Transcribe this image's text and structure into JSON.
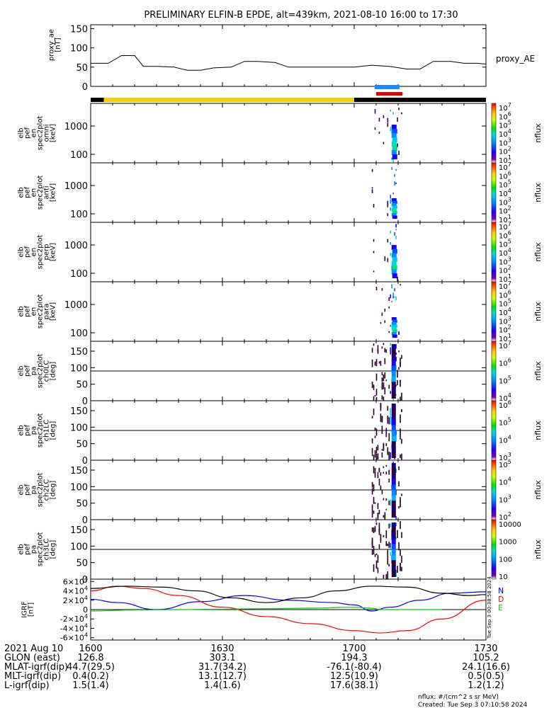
{
  "title": "PRELIMINARY ELFIN-B EPDE, alt=439km, 2021-08-10 16:00 to 17:30",
  "colors": {
    "science_bar_yellow": "#f5d000",
    "black": "#000000",
    "blue_bar": "#1a8cff",
    "red_bar": "#e00000",
    "grf_n": "#0000ff",
    "grf_d": "#ff0000",
    "grf_e": "#00cc00"
  },
  "chart_data": [
    {
      "type": "line",
      "name": "proxy_ae",
      "ylabel": [
        "proxy_ae",
        "[nT]"
      ],
      "legend": "proxy_AE",
      "ylim": [
        0,
        160
      ],
      "yticks": [
        "150",
        "100",
        "50",
        "0"
      ],
      "ytick_values": [
        150,
        100,
        50,
        0
      ],
      "x": [
        "16:00",
        "16:04",
        "16:07",
        "16:10",
        "16:12",
        "16:15",
        "16:19",
        "16:22",
        "16:25",
        "16:28",
        "16:32",
        "16:35",
        "16:38",
        "16:42",
        "16:45",
        "16:48",
        "16:52",
        "16:56",
        "17:00",
        "17:04",
        "17:08",
        "17:12",
        "17:15",
        "17:18",
        "17:22",
        "17:25",
        "17:28",
        "17:30"
      ],
      "values": [
        60,
        60,
        80,
        80,
        52,
        52,
        50,
        42,
        42,
        48,
        50,
        65,
        65,
        62,
        50,
        50,
        50,
        50,
        50,
        55,
        52,
        45,
        45,
        65,
        65,
        60,
        60,
        58
      ]
    },
    {
      "type": "bar",
      "name": "status-bars",
      "segments": [
        {
          "color": "black",
          "start": "16:00",
          "end": "16:03"
        },
        {
          "color": "yellow",
          "start": "16:03",
          "end": "17:00"
        },
        {
          "color": "black",
          "start": "17:00",
          "end": "17:30"
        }
      ],
      "blue_marks": [
        {
          "start": "17:05",
          "end": "17:10"
        }
      ],
      "red_marks": [
        {
          "start": "17:05",
          "end": "17:10"
        },
        {
          "start": "17:10",
          "end": "17:11"
        }
      ]
    },
    {
      "type": "heatmap",
      "name": "energy-spectrogram-omni",
      "ylabel": [
        "elb",
        "pef",
        "en",
        "spec2plot",
        "omni",
        "[keV]"
      ],
      "yticks": [
        "1000",
        "100"
      ],
      "colorbar": {
        "label": "nflux",
        "ticks": [
          "10^7",
          "10^6",
          "10^5",
          "10^4",
          "10^3",
          "10^2",
          "10^1"
        ]
      }
    },
    {
      "type": "heatmap",
      "name": "energy-spectrogram-anti",
      "ylabel": [
        "elb",
        "pef",
        "en",
        "spec2plot",
        "anti",
        "[keV]"
      ],
      "yticks": [
        "1000",
        "100"
      ],
      "colorbar": {
        "label": "nflux",
        "ticks": [
          "10^7",
          "10^6",
          "10^5",
          "10^4",
          "10^3",
          "10^2",
          "10^1"
        ]
      }
    },
    {
      "type": "heatmap",
      "name": "energy-spectrogram-perp",
      "ylabel": [
        "elb",
        "pef",
        "en",
        "spec2plot",
        "perp",
        "[keV]"
      ],
      "yticks": [
        "1000",
        "100"
      ],
      "colorbar": {
        "label": "nflux",
        "ticks": [
          "10^7",
          "10^6",
          "10^5",
          "10^4",
          "10^3",
          "10^2",
          "10^1"
        ]
      }
    },
    {
      "type": "heatmap",
      "name": "energy-spectrogram-para",
      "ylabel": [
        "elb",
        "pef",
        "en",
        "spec2plot",
        "para",
        "[keV]"
      ],
      "yticks": [
        "1000",
        "100"
      ],
      "colorbar": {
        "label": "nflux",
        "ticks": [
          "10^7",
          "10^6",
          "10^5",
          "10^4",
          "10^3",
          "10^2",
          "10^1"
        ]
      }
    },
    {
      "type": "heatmap",
      "name": "pa-spectrogram-ch0",
      "ylabel": [
        "elb",
        "pef",
        "pa",
        "spec2plot",
        "ch0LC",
        "[deg]"
      ],
      "yticks": [
        "150",
        "100",
        "50",
        "0"
      ],
      "colorbar": {
        "label": "nflux",
        "ticks": [
          "10^7",
          "10^6",
          "10^5",
          "10^4"
        ]
      }
    },
    {
      "type": "heatmap",
      "name": "pa-spectrogram-ch1",
      "ylabel": [
        "elb",
        "pef",
        "pa",
        "spec2plot",
        "ch1LC",
        "[deg]"
      ],
      "yticks": [
        "150",
        "100",
        "50",
        "0"
      ],
      "colorbar": {
        "label": "nflux",
        "ticks": [
          "10^6",
          "10^5",
          "10^4",
          "10^3"
        ]
      }
    },
    {
      "type": "heatmap",
      "name": "pa-spectrogram-ch2",
      "ylabel": [
        "elb",
        "pef",
        "pa",
        "spec2plot",
        "ch2LC",
        "[deg]"
      ],
      "yticks": [
        "150",
        "100",
        "50",
        "0"
      ],
      "colorbar": {
        "label": "nflux",
        "ticks": [
          "10^5",
          "10^4",
          "10^3",
          "10^2"
        ]
      }
    },
    {
      "type": "heatmap",
      "name": "pa-spectrogram-ch3",
      "ylabel": [
        "elb",
        "pef",
        "pa",
        "spec2plot",
        "ch3LC",
        "[deg]"
      ],
      "yticks": [
        "150",
        "100",
        "50",
        "0"
      ],
      "colorbar": {
        "label": "nflux",
        "ticks": [
          "10000",
          "1000",
          "100",
          "10"
        ]
      }
    },
    {
      "type": "line",
      "name": "igrf",
      "ylabel": [
        "IGRF",
        "[nT]"
      ],
      "ylim": [
        -65000,
        65000
      ],
      "yticks": [
        "6×10^4",
        "4×10^4",
        "2×10^4",
        "0",
        "-2×10^4",
        "-4×10^4",
        "-6×10^4"
      ],
      "ytick_values": [
        60000,
        40000,
        20000,
        0,
        -20000,
        -40000,
        -60000
      ],
      "series": [
        {
          "name": "N",
          "color": "#0000ff",
          "x": [
            "16:00",
            "16:06",
            "16:15",
            "16:25",
            "16:35",
            "16:45",
            "16:55",
            "17:00",
            "17:04",
            "17:08",
            "17:15",
            "17:22",
            "17:30"
          ],
          "values": [
            22000,
            15000,
            0,
            17000,
            30000,
            20000,
            15000,
            10000,
            -3000,
            5000,
            20000,
            35000,
            38000
          ]
        },
        {
          "name": "D",
          "color": "#ff0000",
          "x": [
            "16:00",
            "16:06",
            "16:12",
            "16:20",
            "16:30",
            "16:40",
            "16:50",
            "17:00",
            "17:06",
            "17:12",
            "17:20",
            "17:30"
          ],
          "values": [
            40000,
            50000,
            45000,
            30000,
            5000,
            -15000,
            -30000,
            -45000,
            -50000,
            -45000,
            -20000,
            20000
          ]
        },
        {
          "name": "E",
          "color": "#00cc00",
          "x": [
            "16:00",
            "16:10",
            "16:20",
            "16:30",
            "16:40",
            "16:50",
            "17:00",
            "17:04",
            "17:06",
            "17:10",
            "17:20"
          ],
          "values": [
            -3000,
            -1000,
            0,
            1000,
            2000,
            3000,
            5000,
            3000,
            0,
            0,
            0
          ]
        },
        {
          "name": "",
          "color": "#000000",
          "x": [
            "16:00",
            "16:08",
            "16:16",
            "16:24",
            "16:32",
            "16:40",
            "16:48",
            "16:56",
            "17:04",
            "17:12",
            "17:20",
            "17:26",
            "17:30"
          ],
          "values": [
            45000,
            50000,
            48000,
            40000,
            25000,
            15000,
            25000,
            40000,
            50000,
            48000,
            35000,
            30000,
            32000
          ]
        }
      ],
      "legend": [
        "N",
        "D",
        "E"
      ],
      "side_text": "Tue Sep  3 00:38:58 2024"
    }
  ],
  "xaxis": {
    "ticks": [
      "1600",
      "1630",
      "1700",
      "1730"
    ]
  },
  "ephemeris": {
    "header": "2021 Aug 10",
    "rows": [
      {
        "label": "GLON (east)",
        "values": [
          "126.8",
          "303.1",
          "194.3",
          "105.2"
        ]
      },
      {
        "label": "MLAT-igrf(dip)",
        "values": [
          "44.7(29.5)",
          "31.7(34.2)",
          "-76.1(-80.4)",
          "24.1(16.6)"
        ]
      },
      {
        "label": "MLT-igrf(dip)",
        "values": [
          "0.4(0.2)",
          "13.1(12.7)",
          "12.5(10.9)",
          "0.5(0.5)"
        ]
      },
      {
        "label": "L-igrf(dip)",
        "values": [
          "1.5(1.4)",
          "1.4(1.6)",
          "17.6(38.1)",
          "1.2(1.2)"
        ]
      }
    ]
  },
  "footer": {
    "units": "nflux: #/(cm^2 s sr MeV)",
    "created": "Created: Tue Sep  3 07:10:58 2024"
  }
}
